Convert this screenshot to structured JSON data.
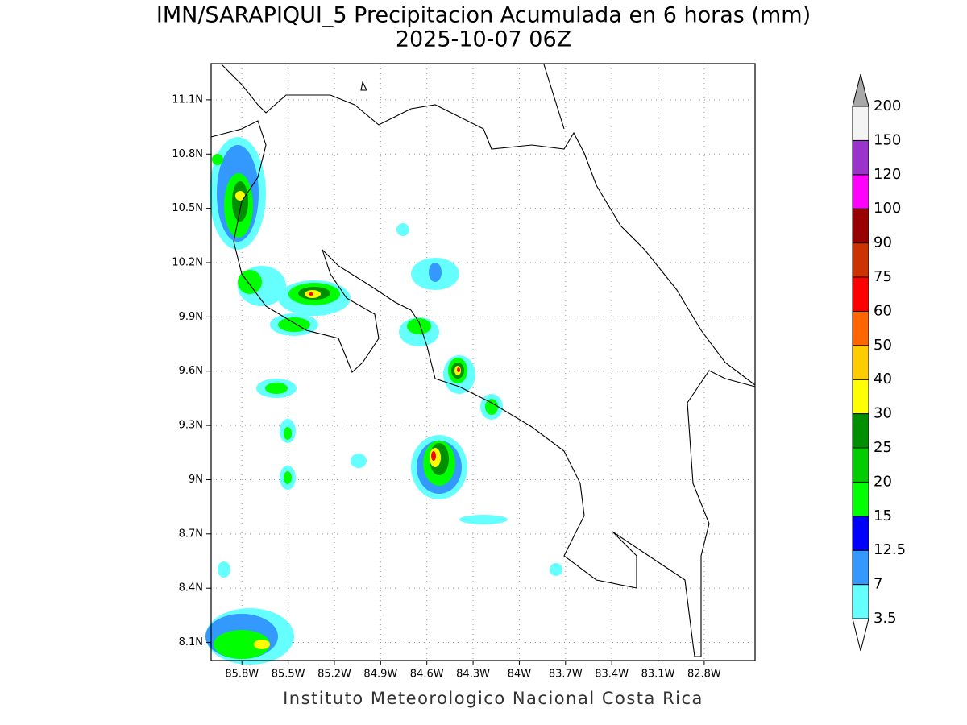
{
  "chart_data": {
    "type": "contour-map",
    "title": "IMN/SARAPIQUI_5 Precipitacion Acumulada en 6 horas (mm)",
    "subtitle": "2025-10-07 06Z",
    "footer": "Instituto Meteorologico Nacional Costa Rica",
    "xlim": [
      -86.0,
      -82.47
    ],
    "ylim": [
      8.0,
      11.3
    ],
    "grid": true,
    "xticks": [
      {
        "value": -85.8,
        "label": "85.8W"
      },
      {
        "value": -85.5,
        "label": "85.5W"
      },
      {
        "value": -85.2,
        "label": "85.2W"
      },
      {
        "value": -84.9,
        "label": "84.9W"
      },
      {
        "value": -84.6,
        "label": "84.6W"
      },
      {
        "value": -84.3,
        "label": "84.3W"
      },
      {
        "value": -84.0,
        "label": "84W"
      },
      {
        "value": -83.7,
        "label": "83.7W"
      },
      {
        "value": -83.4,
        "label": "83.4W"
      },
      {
        "value": -83.1,
        "label": "83.1W"
      },
      {
        "value": -82.8,
        "label": "82.8W"
      }
    ],
    "yticks": [
      {
        "value": 8.1,
        "label": "8.1N"
      },
      {
        "value": 8.4,
        "label": "8.4N"
      },
      {
        "value": 8.7,
        "label": "8.7N"
      },
      {
        "value": 9.0,
        "label": "9N"
      },
      {
        "value": 9.3,
        "label": "9.3N"
      },
      {
        "value": 9.6,
        "label": "9.6N"
      },
      {
        "value": 9.9,
        "label": "9.9N"
      },
      {
        "value": 10.2,
        "label": "10.2N"
      },
      {
        "value": 10.5,
        "label": "10.5N"
      },
      {
        "value": 10.8,
        "label": "10.8N"
      },
      {
        "value": 11.1,
        "label": "11.1N"
      }
    ],
    "colorbar": {
      "levels": [
        3.5,
        7,
        12.5,
        15,
        20,
        25,
        30,
        40,
        50,
        60,
        75,
        90,
        100,
        120,
        150,
        200
      ],
      "colors": [
        "#ffffff",
        "#66ffff",
        "#3399ff",
        "#0000ff",
        "#00ff00",
        "#00cc00",
        "#008f00",
        "#ffff00",
        "#ffcc00",
        "#ff6600",
        "#ff0000",
        "#cc3300",
        "#990000",
        "#ff00ff",
        "#9933cc",
        "#f4f4f4",
        "#a8a8a8"
      ]
    }
  }
}
